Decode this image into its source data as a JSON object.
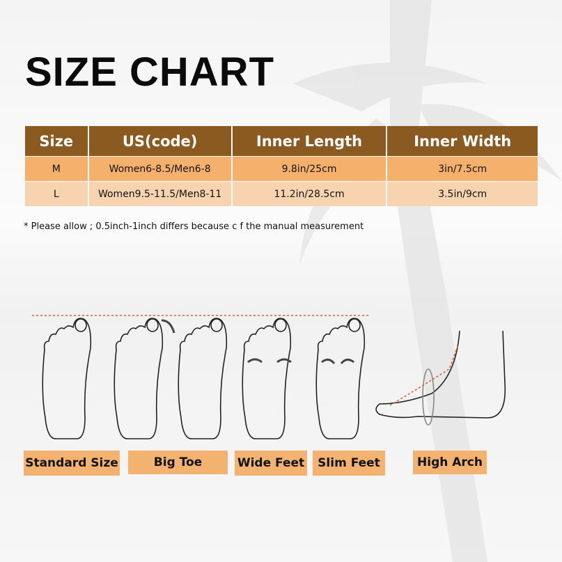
{
  "title": "SIZE CHART",
  "table": {
    "headers": [
      "Size",
      "US(code)",
      "Inner Length",
      "Inner Width"
    ],
    "rows": [
      [
        "M",
        "Women6-8.5/Men6-8",
        "9.8in/25cm",
        "3in/7.5cm"
      ],
      [
        "L",
        "Women9.5-11.5/Men8-11",
        "11.2in/28.5cm",
        "3.5in/9cm"
      ]
    ]
  },
  "note": "* Please allow ; 0.5inch-1inch differs because c f the manual measurement",
  "foot_types": [
    "Standard Size",
    "Big Toe",
    "Wide Feet",
    "Slim Feet",
    "High Arch"
  ],
  "colors": {
    "header": "#8b5a20",
    "row_m": "#f5b16c",
    "row_l": "#f7d4af",
    "label": "#f3b26f",
    "guide_line": "#e05a3a"
  }
}
